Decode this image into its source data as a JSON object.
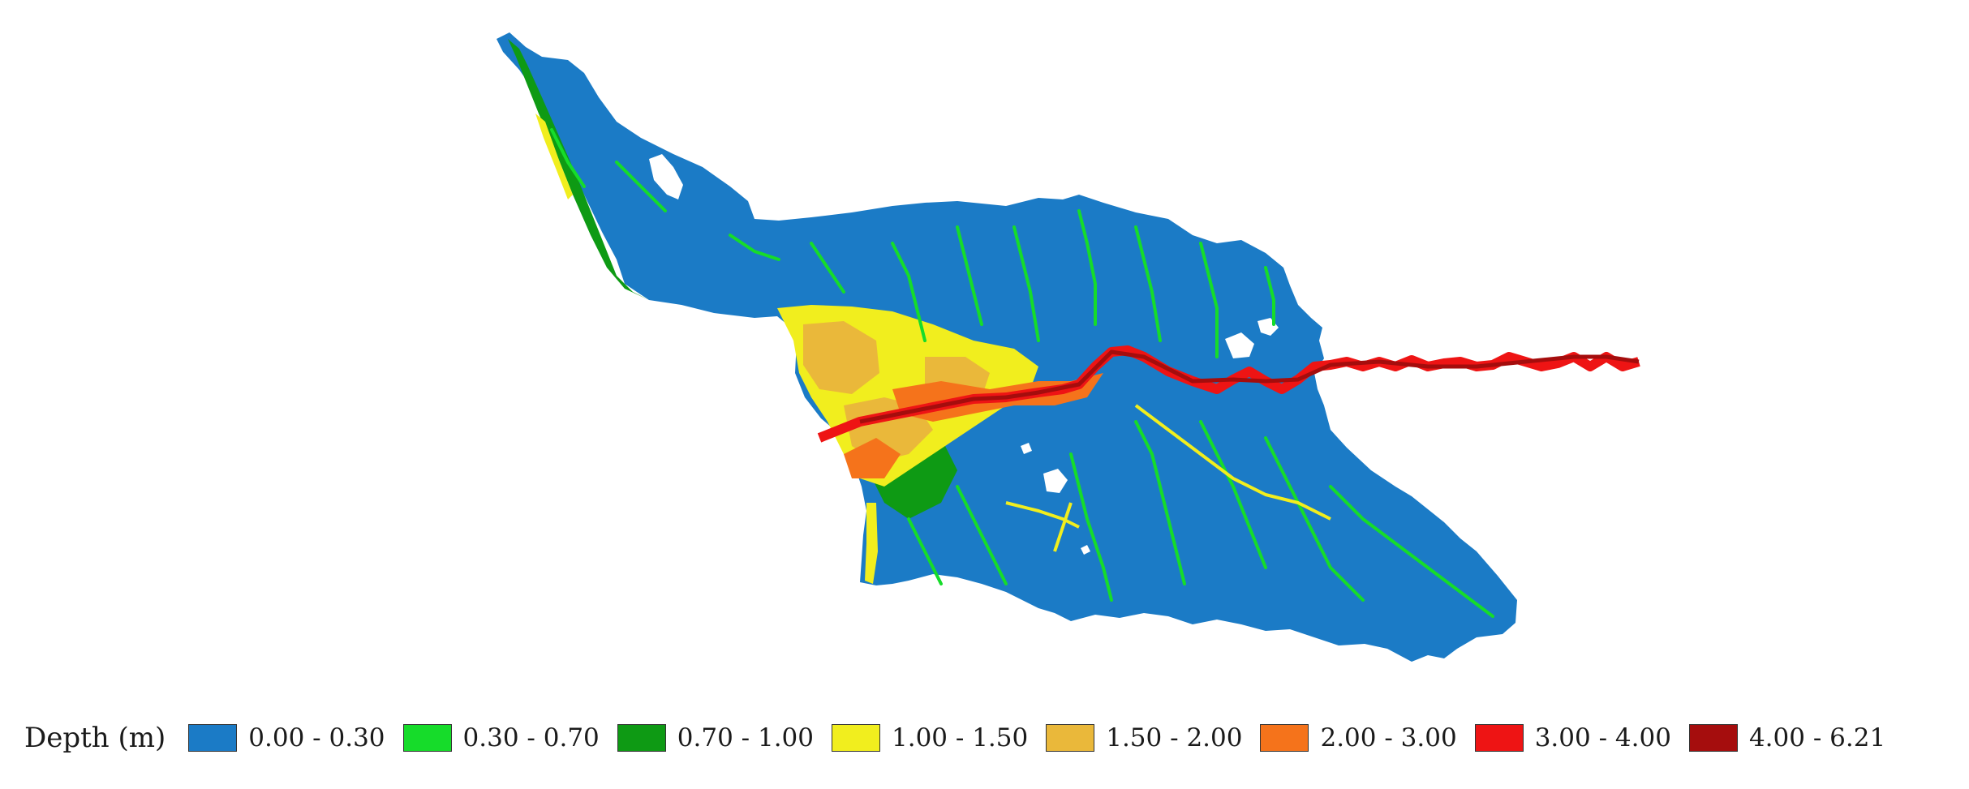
{
  "legend": {
    "title": "Depth (m)",
    "classes": [
      {
        "label": "0.00 - 0.30",
        "color": "#1b7bc6"
      },
      {
        "label": "0.30 - 0.70",
        "color": "#16dc2a"
      },
      {
        "label": "0.70 - 1.00",
        "color": "#0e9a14"
      },
      {
        "label": "1.00 - 1.50",
        "color": "#f1ee1e"
      },
      {
        "label": "1.50 - 2.00",
        "color": "#eab83a"
      },
      {
        "label": "2.00 - 3.00",
        "color": "#f5731b"
      },
      {
        "label": "3.00 - 4.00",
        "color": "#ee1414"
      },
      {
        "label": "4.00 - 6.21",
        "color": "#a50d0d"
      }
    ]
  }
}
